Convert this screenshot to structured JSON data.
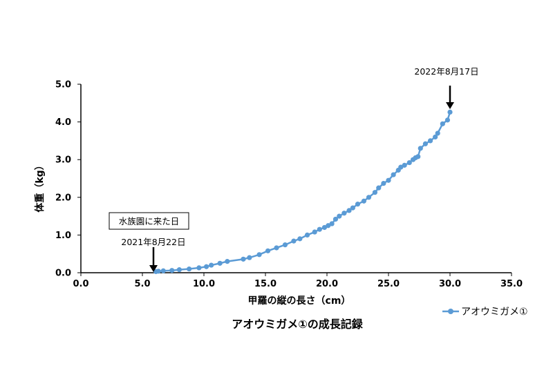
{
  "chart_data": {
    "type": "scatter",
    "caption": "アオウミガメ①の成長記録",
    "xlabel": "甲羅の縦の長さ（cm）",
    "ylabel": "体重（kg）",
    "xlim": [
      0,
      35
    ],
    "ylim": [
      0,
      5
    ],
    "xticks": [
      "0.0",
      "5.0",
      "10.0",
      "15.0",
      "20.0",
      "25.0",
      "30.0",
      "35.0"
    ],
    "yticks": [
      "0.0",
      "1.0",
      "2.0",
      "3.0",
      "4.0",
      "5.0"
    ],
    "grid": false,
    "legend": {
      "position": "bottom-right"
    },
    "color": "#5b9bd5",
    "series": [
      {
        "name": "アオウミガメ①",
        "x": [
          6.1,
          6.3,
          6.7,
          7.4,
          8.0,
          8.8,
          9.6,
          10.2,
          10.6,
          11.3,
          11.9,
          13.2,
          13.7,
          14.5,
          15.2,
          15.9,
          16.6,
          17.3,
          17.8,
          18.4,
          19.0,
          19.4,
          19.8,
          20.1,
          20.4,
          20.7,
          21.0,
          21.4,
          21.8,
          22.1,
          22.5,
          23.0,
          23.4,
          23.9,
          24.2,
          24.6,
          25.0,
          25.4,
          25.8,
          26.0,
          26.3,
          26.7,
          27.0,
          27.2,
          27.4,
          27.6,
          28.0,
          28.4,
          28.8,
          29.0,
          29.4,
          29.8,
          30.0
        ],
        "y": [
          0.03,
          0.04,
          0.05,
          0.06,
          0.08,
          0.1,
          0.13,
          0.16,
          0.2,
          0.25,
          0.3,
          0.36,
          0.4,
          0.48,
          0.58,
          0.66,
          0.74,
          0.84,
          0.9,
          1.0,
          1.08,
          1.15,
          1.2,
          1.25,
          1.3,
          1.42,
          1.5,
          1.58,
          1.65,
          1.72,
          1.82,
          1.9,
          2.0,
          2.13,
          2.25,
          2.37,
          2.45,
          2.6,
          2.72,
          2.8,
          2.85,
          2.92,
          3.0,
          3.05,
          3.08,
          3.3,
          3.42,
          3.5,
          3.6,
          3.7,
          3.95,
          4.05,
          4.26
        ]
      }
    ],
    "annotations": {
      "box_label": "水族園に来た日",
      "start_label": "2021年8月22日",
      "end_label": "2022年8月17日"
    }
  }
}
